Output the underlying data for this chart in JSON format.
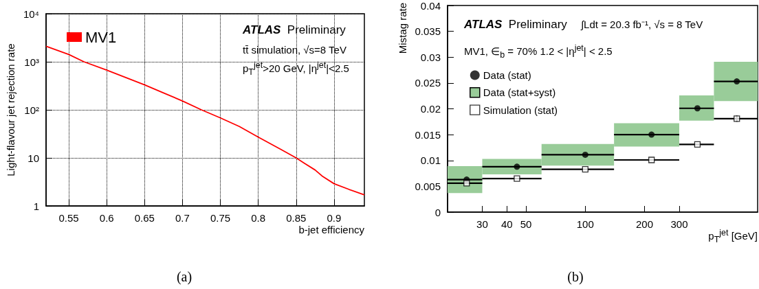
{
  "chart_data": [
    {
      "type": "line",
      "xlabel": "b-jet efficiency",
      "ylabel": "Light-flavour jet rejection rate",
      "log": "y",
      "xlim": [
        0.52,
        0.94
      ],
      "xticks": [
        0.55,
        0.6,
        0.65,
        0.7,
        0.75,
        0.8,
        0.85,
        0.9
      ],
      "ylim": [
        1,
        10000
      ],
      "yticks": [
        1,
        10,
        {
          "value": 100,
          "label": "10²"
        },
        {
          "value": 1000,
          "label": "10³"
        },
        {
          "value": 10000,
          "label": "10⁴"
        }
      ],
      "grid": true,
      "legend": "top left",
      "annotations": [
        "ATLAS Preliminary",
        "tt̄ simulation, √s=8 TeV",
        "p$_{T}$$^{jet}$>20 GeV, |η$^{jet}$|<2.5",
        "(a)"
      ],
      "series": [
        {
          "name": "MV1",
          "color": "#ff0000",
          "x": [
            0.52,
            0.55,
            0.57,
            0.6,
            0.625,
            0.65,
            0.675,
            0.7,
            0.725,
            0.75,
            0.775,
            0.8,
            0.83,
            0.85,
            0.86,
            0.875,
            0.885,
            0.9,
            0.92,
            0.94
          ],
          "values": [
            2100,
            1420,
            1000,
            670,
            470,
            330,
            225,
            153,
            100,
            68,
            45,
            27,
            15,
            10,
            7.9,
            5.6,
            4.1,
            2.9,
            2.2,
            1.7
          ]
        }
      ]
    },
    {
      "type": "scatter",
      "xlabel": "p$_{T}$$^{jet}$ [GeV]",
      "ylabel": "Mistag rate",
      "log": "x",
      "xlim": [
        20,
        750
      ],
      "xticks": [
        30,
        40,
        50,
        100,
        200,
        300
      ],
      "ylim": [
        0,
        0.04
      ],
      "yticks": [
        0,
        0.005,
        0.01,
        0.015,
        0.02,
        0.025,
        0.03,
        0.035,
        0.04
      ],
      "legend": "top left",
      "annotations": [
        "ATLAS Preliminary",
        "∫Ldt = 20.3 fb⁻¹,  √s = 8 TeV",
        "MV1, ∈$_{b}$ = 70%    1.2 < |η$^{jet}$| < 2.5",
        "(b)"
      ],
      "series": [
        {
          "name": "Data (stat)",
          "color": "#000000",
          "marker": "circle",
          "x": [
            25,
            45,
            100,
            217,
            371,
            588
          ],
          "values": [
            0.0063,
            0.0088,
            0.0111,
            0.015,
            0.0201,
            0.0253
          ],
          "xerrors": [
            [
              20,
              30
            ],
            [
              30,
              60
            ],
            [
              60,
              140
            ],
            [
              140,
              300
            ],
            [
              300,
              450
            ],
            [
              450,
              750
            ]
          ]
        },
        {
          "name": "Data (stat+syst)",
          "type": "histogram",
          "color": "#99cc99",
          "bins": [
            20,
            30,
            60,
            140,
            300,
            450,
            750
          ],
          "base": [
            0.0037,
            0.0073,
            0.009,
            0.0127,
            0.0177,
            0.0215
          ],
          "values": [
            0.0052,
            0.003,
            0.0042,
            0.0045,
            0.0049,
            0.0076
          ]
        },
        {
          "name": "Simulation (stat)",
          "color": "#000000",
          "marker": "square",
          "x": [
            25,
            45,
            100,
            217,
            371,
            588
          ],
          "values": [
            0.0056,
            0.0065,
            0.0083,
            0.0101,
            0.0131,
            0.0181
          ],
          "xerrors": [
            [
              20,
              30
            ],
            [
              30,
              60
            ],
            [
              60,
              140
            ],
            [
              140,
              300
            ],
            [
              300,
              450
            ],
            [
              450,
              750
            ]
          ],
          "errors": [
            null,
            null,
            null,
            null,
            null,
            0.0006
          ]
        }
      ]
    }
  ]
}
